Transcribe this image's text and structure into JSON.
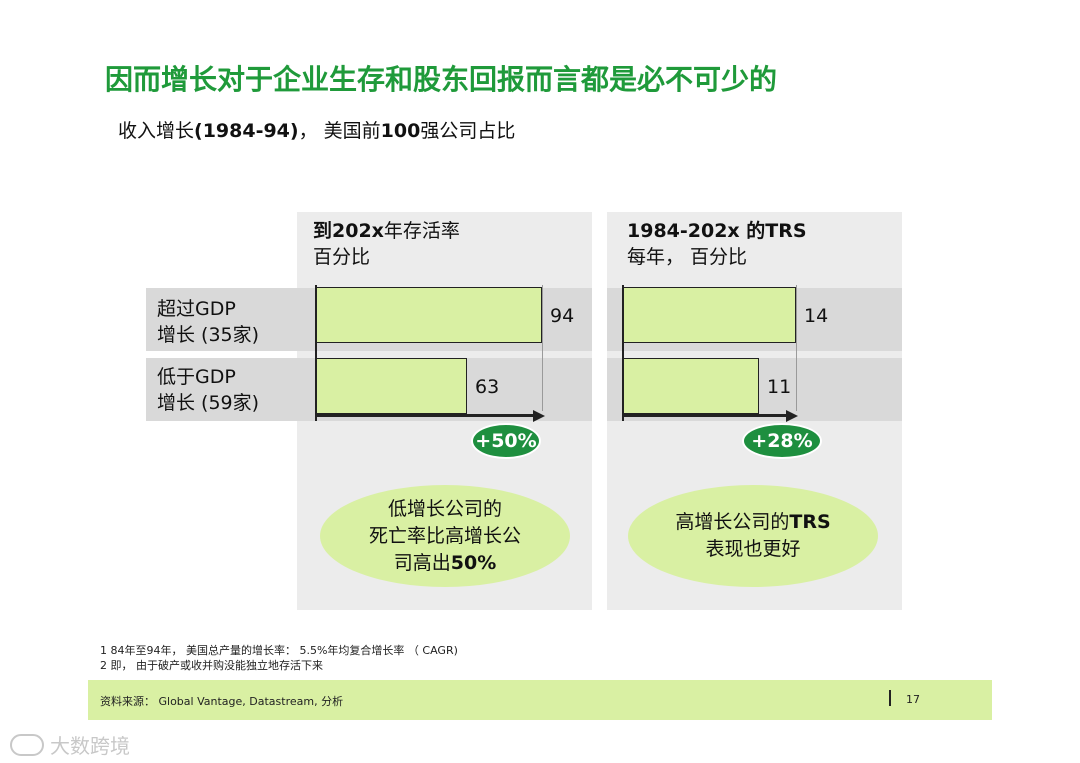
{
  "title": "因而增长对于企业生存和股东回报而言都是必不可少的",
  "subtitle": {
    "prefix": "收入增长",
    "period": "(1984-94)",
    "suffix": "， 美国前",
    "count": "100",
    "tail": "强公司占比"
  },
  "chart_data": [
    {
      "type": "bar",
      "orientation": "horizontal",
      "title_line1_bold": "到202x",
      "title_line1_rest": "年存活率",
      "title_line2": "百分比",
      "categories": [
        "超过GDP 增长 (35家)",
        "低于GDP 增长 (59家)"
      ],
      "values": [
        94,
        63
      ],
      "data_labels": [
        "94",
        "63"
      ],
      "xlim": [
        0,
        94
      ],
      "difference_label": "+50%"
    },
    {
      "type": "bar",
      "orientation": "horizontal",
      "title_line1_bold": "1984-202x",
      "title_line1_rest": " 的TRS",
      "title_line2": "每年， 百分比",
      "categories": [
        "超过GDP 增长 (35家)",
        "低于GDP 增长 (59家)"
      ],
      "values": [
        14,
        11
      ],
      "data_labels": [
        "14",
        "11"
      ],
      "xlim": [
        0,
        14
      ],
      "difference_label": "+28%"
    }
  ],
  "rows": {
    "row1_line1": "超过GDP",
    "row1_line2": "增长 (35家)",
    "row2_line1": "低于GDP",
    "row2_line2": "增长 (59家)"
  },
  "callouts": {
    "left_line1": "低增长公司的",
    "left_line2": "死亡率比高增长公",
    "left_line3_pre": "司高出",
    "left_line3_bold": "50%",
    "right_line1_pre": "高增长公司的",
    "right_line1_bold": "TRS",
    "right_line2": "表现也更好"
  },
  "footnotes": {
    "note1": "1 84年至94年， 美国总产量的增长率： 5.5%年均复合增长率 （ CAGR)",
    "note2": "2 即， 由于破产或收并购没能独立地存活下来"
  },
  "footer": {
    "source": "资料来源： Global Vantage, Datastream, 分析",
    "page_number": "17"
  },
  "watermark": "大数跨境",
  "colors": {
    "title_green": "#1f9a3a",
    "bar_fill": "#d9f0a3",
    "badge_green": "#1e8f3f",
    "panel_gray": "#ececec",
    "band_gray": "#d9d9d9"
  }
}
